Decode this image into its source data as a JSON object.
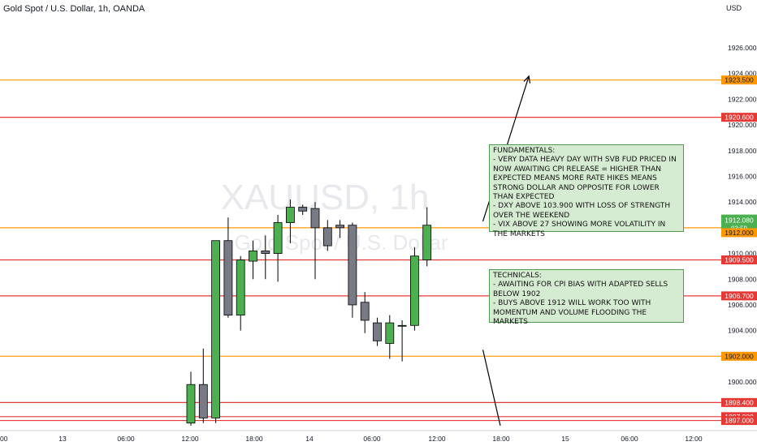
{
  "header": {
    "title": "Gold Spot / U.S. Dollar, 1h, OANDA",
    "currency": "USD"
  },
  "watermark": {
    "symbol": "XAUUSD, 1h",
    "name": "Gold Spot / U.S. Dollar"
  },
  "colors": {
    "bull": "#4caf50",
    "bear": "#787b86",
    "red_level": "#e53935",
    "orange_level": "#ff9800",
    "note_bg": "#d6ecd2",
    "note_border": "#4f9a4f"
  },
  "chart_data": {
    "type": "candlestick",
    "title": "Gold Spot / U.S. Dollar, 1h, OANDA",
    "ylim": [
      1896.6,
      1927.6
    ],
    "y_ticks": [
      1900,
      1902,
      1904,
      1906,
      1908,
      1910,
      1912,
      1914,
      1916,
      1918,
      1920,
      1922,
      1924,
      1926
    ],
    "x_ticks": [
      "00",
      "13",
      "06:00",
      "12:00",
      "18:00",
      "14",
      "06:00",
      "12:00",
      "18:00",
      "15",
      "06:00",
      "12:00"
    ],
    "candles": [
      {
        "o": 1896.8,
        "h": 1900.8,
        "l": 1896.6,
        "c": 1899.8
      },
      {
        "o": 1899.8,
        "h": 1902.6,
        "l": 1896.8,
        "c": 1897.2
      },
      {
        "o": 1897.2,
        "h": 1911.0,
        "l": 1896.8,
        "c": 1911.0
      },
      {
        "o": 1911.0,
        "h": 1912.8,
        "l": 1905.0,
        "c": 1905.2
      },
      {
        "o": 1905.2,
        "h": 1909.8,
        "l": 1904.0,
        "c": 1909.5
      },
      {
        "o": 1909.4,
        "h": 1911.0,
        "l": 1908.0,
        "c": 1910.2
      },
      {
        "o": 1910.2,
        "h": 1911.4,
        "l": 1908.0,
        "c": 1910.0
      },
      {
        "o": 1910.0,
        "h": 1913.0,
        "l": 1907.8,
        "c": 1912.4
      },
      {
        "o": 1912.4,
        "h": 1914.2,
        "l": 1910.8,
        "c": 1913.6
      },
      {
        "o": 1913.6,
        "h": 1913.8,
        "l": 1913.0,
        "c": 1913.3
      },
      {
        "o": 1913.5,
        "h": 1914.0,
        "l": 1908.0,
        "c": 1912.0
      },
      {
        "o": 1912.0,
        "h": 1912.6,
        "l": 1910.2,
        "c": 1910.6
      },
      {
        "o": 1912.2,
        "h": 1912.6,
        "l": 1911.2,
        "c": 1912.0
      },
      {
        "o": 1912.2,
        "h": 1912.4,
        "l": 1905.0,
        "c": 1906.0
      },
      {
        "o": 1906.2,
        "h": 1907.0,
        "l": 1903.8,
        "c": 1904.8
      },
      {
        "o": 1904.6,
        "h": 1905.0,
        "l": 1902.8,
        "c": 1903.2
      },
      {
        "o": 1903.0,
        "h": 1905.2,
        "l": 1901.8,
        "c": 1904.6
      },
      {
        "o": 1904.4,
        "h": 1904.8,
        "l": 1901.6,
        "c": 1904.4
      },
      {
        "o": 1904.4,
        "h": 1910.5,
        "l": 1904.0,
        "c": 1909.8
      },
      {
        "o": 1909.5,
        "h": 1913.6,
        "l": 1909.0,
        "c": 1912.2
      }
    ],
    "levels": [
      {
        "price": 1923.5,
        "label": "1923.500",
        "kind": "orange"
      },
      {
        "price": 1920.6,
        "label": "1920.600",
        "kind": "red"
      },
      {
        "price": 1912.0,
        "label": "1912.000",
        "kind": "orange"
      },
      {
        "price": 1909.5,
        "label": "1909.500",
        "kind": "red"
      },
      {
        "price": 1906.7,
        "label": "1906.700",
        "kind": "red"
      },
      {
        "price": 1902.0,
        "label": "1902.000",
        "kind": "orange"
      },
      {
        "price": 1898.4,
        "label": "1898.400",
        "kind": "red"
      },
      {
        "price": 1897.3,
        "label": "1897.300",
        "kind": "red"
      },
      {
        "price": 1897.0,
        "label": "1897.000",
        "kind": "red"
      }
    ],
    "current_price": {
      "label": "1912.080",
      "countdown": "03:59"
    },
    "arrows": [
      {
        "name": "up-projection-arrow",
        "from_bar": 23.5,
        "from_price": 1912.5,
        "to_bar": 27.2,
        "to_price": 1923.8
      },
      {
        "name": "down-projection-arrow",
        "from_bar": 23.5,
        "from_price": 1902.5,
        "to_bar": 24.9,
        "to_price": 1896.6
      }
    ]
  },
  "notes": {
    "fundamentals": [
      "FUNDAMENTALS:",
      "- VERY DATA HEAVY DAY WITH SVB FUD PRICED IN",
      "NOW AWAITING CPI RELEASE = HIGHER THAN",
      "EXPECTED MEANS MORE RATE HIKES MEANS",
      "STRONG DOLLAR AND OPPOSITE FOR LOWER",
      "THAN EXPECTED",
      "- DXY ABOVE 103.900 WITH LOSS OF STRENGTH",
      "OVER THE WEEKEND",
      "- VIX ABOVE 27 SHOWING MORE VOLATILITY IN",
      "THE MARKETS"
    ],
    "technicals": [
      "TECHNICALS:",
      "- AWAITING FOR CPI BIAS WITH ADAPTED SELLS",
      "BELOW 1902",
      "- BUYS ABOVE 1912 WILL WORK TOO WITH",
      "MOMENTUM AND VOLUME FLOODING THE",
      "MARKETS"
    ]
  }
}
